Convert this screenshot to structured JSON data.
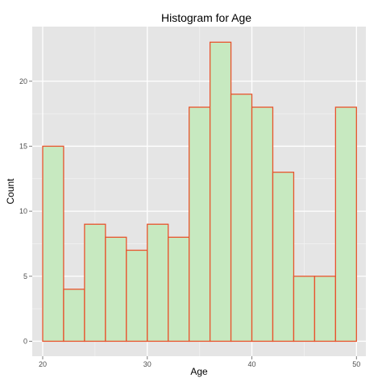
{
  "chart_data": {
    "type": "bar",
    "title": "Histogram for Age",
    "xlabel": "Age",
    "ylabel": "Count",
    "bins": [
      {
        "start": 20.0,
        "end": 22.0,
        "count": 15
      },
      {
        "start": 22.0,
        "end": 24.0,
        "count": 4
      },
      {
        "start": 24.0,
        "end": 26.0,
        "count": 9
      },
      {
        "start": 26.0,
        "end": 28.0,
        "count": 8
      },
      {
        "start": 28.0,
        "end": 30.0,
        "count": 7
      },
      {
        "start": 30.0,
        "end": 32.0,
        "count": 9
      },
      {
        "start": 32.0,
        "end": 34.0,
        "count": 8
      },
      {
        "start": 34.0,
        "end": 36.0,
        "count": 18
      },
      {
        "start": 36.0,
        "end": 38.0,
        "count": 23
      },
      {
        "start": 38.0,
        "end": 40.0,
        "count": 19
      },
      {
        "start": 40.0,
        "end": 42.0,
        "count": 18
      },
      {
        "start": 42.0,
        "end": 44.0,
        "count": 13
      },
      {
        "start": 44.0,
        "end": 46.0,
        "count": 5
      },
      {
        "start": 46.0,
        "end": 48.0,
        "count": 5
      },
      {
        "start": 48.0,
        "end": 50.0,
        "count": 18
      }
    ],
    "xlim": [
      19.0,
      50.9
    ],
    "ylim": [
      -1.15,
      24.2
    ],
    "x_ticks": [
      "20",
      "30",
      "40",
      "50"
    ],
    "y_ticks": [
      "0",
      "5",
      "10",
      "15",
      "20"
    ],
    "grid": true,
    "colors": {
      "bar_fill": "#c7e9c0",
      "bar_outline": "#e8532d",
      "panel": "#e5e5e5",
      "grid_major": "#ffffff",
      "grid_minor": "#f2f2f2"
    }
  }
}
